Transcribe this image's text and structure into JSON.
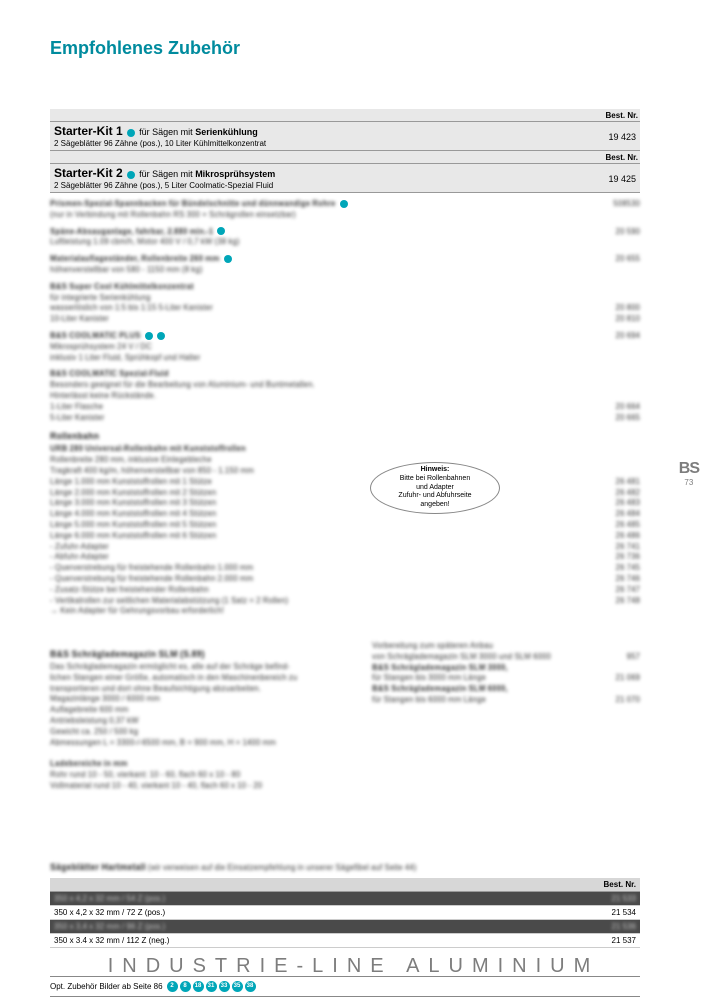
{
  "title": "Empfohlenes Zubehör",
  "best_nr_label": "Best. Nr.",
  "kits": [
    {
      "name": "Starter-Kit 1",
      "desc": "für Sägen mit Serienkühlung",
      "sub": "2 Sägeblätter 96 Zähne (pos.), 10 Liter Kühlmittelkonzentrat",
      "nr": "19 423"
    },
    {
      "name": "Starter-Kit 2",
      "desc": "für Sägen mit Mikrosprühsystem",
      "sub": "2 Sägeblätter 96 Zähne (pos.), 5 Liter Coolmatic-Spezial Fluid",
      "nr": "19 425"
    }
  ],
  "afterKits": [
    {
      "l": "Prismen-Spezial-Spannbacken für Bündelschnitte und dünnwandige Rohre",
      "r": "508530",
      "blur": true,
      "bold": true,
      "circle": 1
    },
    {
      "l": "(nur in Verbindung mit Rollenbahn RS 300 + Schrägrollen einsetzbar)",
      "r": "",
      "blur": true
    },
    {
      "spacer": true
    },
    {
      "l": "Späne-Absauganlage, fahrbar, 2.880 min.-1",
      "r": "20 590",
      "blur": true,
      "bold": true,
      "circle": 1
    },
    {
      "l": "Luftleistung 1.09 cbm/h, Motor 400 V / 0,7 kW (38 kg)",
      "r": "",
      "blur": true
    },
    {
      "spacer": true
    },
    {
      "l": "Materialauflageständer, Rollenbreite 260 mm",
      "r": "20 655",
      "blur": true,
      "bold": true,
      "circle": 1
    },
    {
      "l": "höhenverstellbar von 580 - 1150 mm (8 kg)",
      "r": "",
      "blur": true
    },
    {
      "spacer": true
    },
    {
      "l": "B&S Super Cool Kühlmittelkonzentrat",
      "r": "",
      "blur": true,
      "bold": true
    },
    {
      "l": "für integrierte Serienkühlung",
      "r": "",
      "blur": true
    },
    {
      "l": "wasserlöslich von 1:5 bis 1:15 5-Liter Kanister",
      "r": "20 800",
      "blur": true
    },
    {
      "l": "10-Liter Kanister",
      "r": "20 810",
      "blur": true
    },
    {
      "spacer": true
    },
    {
      "l": "B&S COOLMATIC PLUS",
      "r": "20 694",
      "blur": true,
      "bold": true,
      "circle": 2
    },
    {
      "l": "Mikrosprühsystem 24 V / DC",
      "r": "",
      "blur": true
    },
    {
      "l": "inklusiv 1 Liter Fluid, Sprühkopf und Halter",
      "r": "",
      "blur": true
    },
    {
      "spacer": true
    },
    {
      "l": "B&S COOLMATIC Spezial-Fluid",
      "r": "",
      "blur": true,
      "bold": true
    },
    {
      "l": "Besonders geeignet für die Bearbeitung von Aluminium- und Buntmetallen.",
      "r": "",
      "blur": true
    },
    {
      "l": "Hinterlässt keine Rückstände.",
      "r": "",
      "blur": true
    },
    {
      "l": "1-Liter Flasche",
      "r": "20 664",
      "blur": true
    },
    {
      "l": "5-Liter Kanister",
      "r": "20 665",
      "blur": true
    }
  ],
  "rollenbahn_title": "Rollenbahn",
  "rollenbahn": [
    {
      "l": "URB 280 Universal-Rollenbahn mit Kunststoffrollen",
      "r": "",
      "blur": true,
      "bold": true
    },
    {
      "l": "Rollenbreite 280 mm, inklusive Einlegebleche",
      "r": "",
      "blur": true
    },
    {
      "l": "Tragkraft 400 kg/m, höhenverstellbar von 850 - 1.150 mm",
      "r": "",
      "blur": true
    },
    {
      "l": "Länge 1.000 mm Kunststoffrollen mit 1 Stütze",
      "r": "26 481",
      "blur": true
    },
    {
      "l": "Länge 2.000 mm Kunststoffrollen mit 2 Stützen",
      "r": "26 482",
      "blur": true
    },
    {
      "l": "Länge 3.000 mm Kunststoffrollen mit 3 Stützen",
      "r": "26 483",
      "blur": true
    },
    {
      "l": "Länge 4.000 mm Kunststoffrollen mit 4 Stützen",
      "r": "26 484",
      "blur": true
    },
    {
      "l": "Länge 5.000 mm Kunststoffrollen mit 5 Stützen",
      "r": "26 485",
      "blur": true
    },
    {
      "l": "Länge 6.000 mm Kunststoffrollen mit 6 Stützen",
      "r": "26 486",
      "blur": true
    },
    {
      "l": "- Zufuhr-Adapter",
      "r": "26 741",
      "blur": true
    },
    {
      "l": "- Abfuhr-Adapter",
      "r": "26 736",
      "blur": true
    },
    {
      "l": "- Querverstrebung für freistehende Rollenbahn 1.000 mm",
      "r": "26 745",
      "blur": true
    },
    {
      "l": "- Querverstrebung für freistehende Rollenbahn 2.000 mm",
      "r": "26 746",
      "blur": true
    },
    {
      "l": "- Zusatz-Stütze bei freistehender Rollenbahn",
      "r": "26 747",
      "blur": true
    },
    {
      "l": "- Vertikalrollen zur seitlichen Materialabstützung (1 Satz = 2 Rollen)",
      "r": "26 748",
      "blur": true
    },
    {
      "l": "→ Kein Adapter für Gehrungsvorbau erforderlich!",
      "r": "",
      "blur": true
    }
  ],
  "hinweis": {
    "title": "Hinweis:",
    "l1": "Bitte bei Rollenbahnen",
    "l2": "und Adapter",
    "l3": "Zufuhr- und Abfuhrseite",
    "l4": "angeben!"
  },
  "slm_title": "B&S Schräglademagazin SLM (S.89)",
  "slm_left": [
    "Das Schräglademagazin ermöglicht es, alle auf der Schräge befind-",
    "lichen Stangen einer Größe, automatisch in den Maschinenbereich zu",
    "transportieren und dort ohne Beaufsichtigung abzuarbeiten.",
    "Magazinlänge 3000 / 6000 mm",
    "Auflagebreite 600 mm",
    "Antriebsleistung 0,37 kW",
    "Gewicht ca. 250 / 500 kg",
    "Abmessungen L = 3300-/-6500 mm, B = 900 mm, H = 1400 mm",
    "",
    "Ladebereiche in mm",
    "Rohr rund 10 - 50, vierkant: 10 - 60, flach 60 x 10 - 80",
    "Vollmaterial rund 10 - 40, vierkant 10 - 40, flach 60 x 10 - 20"
  ],
  "slm_right": [
    {
      "l": "Vorbereitung zum späteren Anbau",
      "r": ""
    },
    {
      "l": "von Schräglademagazin SLM 3000 und SLM 6000",
      "r": "957"
    },
    {
      "l": "B&S Schräglademagazin SLM 3000,",
      "r": "",
      "bold": true
    },
    {
      "l": "für Stangen bis 3000 mm Länge",
      "r": "21 069"
    },
    {
      "l": "B&S Schräglademagazin SLM 6000,",
      "r": "",
      "bold": true
    },
    {
      "l": "für Stangen bis 6000 mm Länge",
      "r": "21 070"
    }
  ],
  "saw_title": "Sägeblätter Hartmetall",
  "saw_sub": "(wir verweisen auf die Einsatzempfehlung in unserer Sägefibel auf Seite 44)",
  "saw_rows": [
    {
      "l": "350 x 4,2 x 32 mm / 54 Z (pos.)",
      "r": "21 533",
      "dark": true,
      "blur": true
    },
    {
      "l": "350 x 4,2 x 32 mm / 72 Z (pos.)",
      "r": "21 534",
      "dark": false
    },
    {
      "l": "350 x 3,4 x 32 mm / 96 Z (pos.)",
      "r": "21 536",
      "dark": true,
      "blur": true
    },
    {
      "l": "350 x 3.4 x 32 mm / 112 Z (neg.)",
      "r": "21 537",
      "dark": false
    }
  ],
  "footer_opt": "Opt. Zubehör Bilder ab Seite 86",
  "footer_circles": [
    "2",
    "8",
    "18",
    "31",
    "33",
    "35",
    "38"
  ],
  "big_footer": "INDUSTRIE-LINE  ALUMINIUM",
  "side": {
    "bs": "BS",
    "pg": "73"
  }
}
